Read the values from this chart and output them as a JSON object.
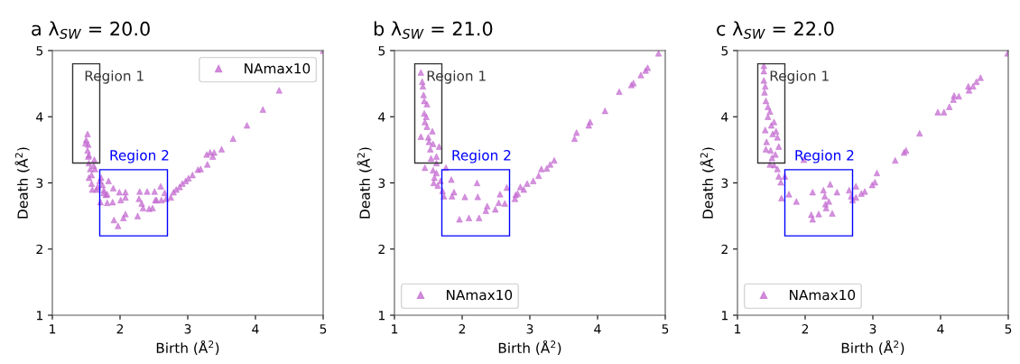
{
  "chart_data": [
    {
      "type": "scatter",
      "title": "a λ$_{SW}$ = 20.0",
      "xlabel": "Birth (Å$^{2}$)",
      "ylabel": "Death (Å$^{2}$)",
      "xlim": [
        1,
        5
      ],
      "ylim": [
        1,
        5
      ],
      "xticks": [
        1,
        2,
        3,
        4,
        5
      ],
      "yticks": [
        1,
        2,
        3,
        4,
        5
      ],
      "grid": false,
      "legend": "top right",
      "marker": "triangle",
      "annotations": [
        "Region 1",
        "Region 2"
      ],
      "series": [
        {
          "name": "NAmax10",
          "color": "#c46bd0",
          "x": [
            5.0,
            4.35,
            4.11,
            3.875,
            3.67,
            3.5,
            3.39,
            3.33,
            3.28,
            3.37,
            3.29,
            3.19,
            3.15,
            3.07,
            3.01,
            2.97,
            2.92,
            2.88,
            2.83,
            2.79,
            2.75,
            2.68,
            2.61,
            2.54,
            2.48,
            2.43,
            2.34,
            2.32,
            2.28,
            2.29,
            2.4,
            2.51,
            2.6,
            2.66,
            2.52,
            2.08,
            2.08,
            1.99,
            2.01,
            1.89,
            1.81,
            1.71,
            1.9,
            1.83,
            1.76,
            1.79,
            2.08,
            2.05,
            1.91,
            1.97,
            2.26,
            1.52,
            1.5,
            1.53,
            1.52,
            1.54,
            1.62,
            1.54,
            1.56,
            1.58,
            1.54,
            1.58,
            1.59,
            1.65,
            1.72,
            1.74,
            1.76,
            1.81,
            1.7,
            1.63,
            1.49,
            1.53,
            1.61,
            1.67
          ],
          "values": [
            5.0,
            4.4,
            4.11,
            3.87,
            3.67,
            3.51,
            3.46,
            3.46,
            3.43,
            3.4,
            3.28,
            3.21,
            3.2,
            3.12,
            3.07,
            3.03,
            2.99,
            2.94,
            2.9,
            2.86,
            2.78,
            2.76,
            2.74,
            2.74,
            2.62,
            2.61,
            2.62,
            2.69,
            2.76,
            2.87,
            2.87,
            2.87,
            2.95,
            2.85,
            2.74,
            2.86,
            2.78,
            2.86,
            2.74,
            2.71,
            2.7,
            2.71,
            2.92,
            3.03,
            2.89,
            2.82,
            2.53,
            2.47,
            2.44,
            2.35,
            2.5,
            3.74,
            3.65,
            3.58,
            3.49,
            3.42,
            3.35,
            3.3,
            3.21,
            3.12,
            3.08,
            2.99,
            2.9,
            2.9,
            3.08,
            2.97,
            2.85,
            2.83,
            3.03,
            3.21,
            3.6,
            3.4,
            3.26,
            2.94
          ]
        }
      ]
    },
    {
      "type": "scatter",
      "title": "b λ$_{SW}$ = 21.0",
      "xlabel": "Birth (Å$^{2}$)",
      "ylabel": "Death (Å$^{2}$)",
      "xlim": [
        1,
        5
      ],
      "ylim": [
        1,
        5
      ],
      "xticks": [
        1,
        2,
        3,
        4,
        5
      ],
      "yticks": [
        1,
        2,
        3,
        4,
        5
      ],
      "grid": false,
      "legend": "bottom left",
      "marker": "triangle",
      "annotations": [
        "Region 1",
        "Region 2"
      ],
      "series": [
        {
          "name": "NAmax10",
          "color": "#c46bd0",
          "x": [
            4.9,
            4.74,
            4.71,
            4.64,
            4.53,
            4.5,
            4.32,
            4.11,
            3.89,
            3.87,
            3.69,
            3.66,
            3.36,
            3.3,
            3.25,
            3.17,
            3.13,
            3.05,
            2.96,
            2.91,
            2.86,
            2.82,
            2.79,
            2.78,
            2.66,
            2.63,
            2.56,
            2.54,
            2.49,
            2.37,
            2.35,
            2.25,
            2.1,
            1.96,
            2.22,
            2.23,
            2.04,
            1.88,
            1.85,
            1.84,
            1.76,
            1.73,
            1.71,
            1.68,
            1.64,
            1.58,
            1.39,
            1.41,
            1.42,
            1.43,
            1.44,
            1.48,
            1.44,
            1.47,
            1.45,
            1.48,
            1.56,
            1.39,
            1.5,
            1.51,
            1.57,
            1.53,
            1.66,
            1.54,
            1.62,
            1.62,
            1.45,
            1.57,
            1.62,
            1.59
          ],
          "values": [
            4.96,
            4.74,
            4.7,
            4.63,
            4.51,
            4.48,
            4.38,
            4.09,
            3.92,
            3.87,
            3.76,
            3.67,
            3.34,
            3.28,
            3.22,
            3.21,
            3.11,
            3.03,
            2.99,
            2.9,
            2.94,
            2.84,
            2.82,
            2.76,
            2.93,
            2.69,
            2.83,
            2.7,
            2.6,
            2.65,
            2.58,
            2.47,
            2.47,
            2.45,
            3.0,
            2.79,
            2.79,
            2.86,
            2.8,
            3.05,
            3.23,
            2.8,
            2.88,
            3.03,
            2.96,
            3.0,
            4.67,
            4.53,
            4.46,
            4.33,
            4.24,
            4.19,
            4.05,
            4.0,
            3.92,
            3.85,
            3.78,
            3.7,
            3.69,
            3.62,
            3.59,
            3.51,
            3.55,
            3.37,
            3.4,
            3.3,
            3.23,
            3.19,
            3.15,
            3.08
          ]
        }
      ]
    },
    {
      "type": "scatter",
      "title": "c λ$_{SW}$ = 22.0",
      "xlabel": "Birth (Å$^{2}$)",
      "ylabel": "Death (Å$^{2}$)",
      "xlim": [
        1,
        5
      ],
      "ylim": [
        1,
        5
      ],
      "xticks": [
        1,
        2,
        3,
        4,
        5
      ],
      "yticks": [
        1,
        2,
        3,
        4,
        5
      ],
      "grid": false,
      "legend": "bottom left",
      "marker": "triangle",
      "annotations": [
        "Region 1",
        "Region 2"
      ],
      "series": [
        {
          "name": "NAmax10",
          "color": "#c46bd0",
          "x": [
            4.99,
            4.59,
            4.53,
            4.48,
            4.42,
            4.41,
            4.27,
            4.2,
            4.19,
            4.13,
            4.05,
            3.96,
            3.69,
            3.49,
            3.46,
            3.33,
            3.06,
            3.03,
            2.99,
            2.88,
            2.83,
            2.75,
            2.75,
            2.7,
            2.68,
            2.65,
            2.47,
            2.4,
            2.37,
            2.35,
            2.3,
            2.31,
            2.29,
            2.27,
            2.2,
            2.11,
            2.09,
            2.11,
            1.87,
            1.76,
            1.65,
            1.64,
            1.7,
            1.61,
            1.59,
            1.54,
            1.48,
            1.98,
            1.39,
            1.39,
            1.39,
            1.41,
            1.4,
            1.42,
            1.45,
            1.48,
            1.45,
            1.5,
            1.54,
            1.57,
            1.41,
            1.52,
            1.59,
            1.43,
            1.42,
            1.49,
            1.61,
            1.56,
            1.51
          ],
          "values": [
            4.96,
            4.59,
            4.53,
            4.46,
            4.4,
            4.46,
            4.31,
            4.32,
            4.26,
            4.15,
            4.07,
            4.07,
            3.75,
            3.49,
            3.46,
            3.34,
            3.15,
            3.01,
            2.97,
            2.87,
            2.84,
            2.95,
            2.78,
            2.74,
            2.8,
            2.89,
            2.86,
            2.54,
            2.98,
            2.72,
            2.68,
            2.62,
            2.8,
            2.89,
            2.53,
            2.86,
            2.52,
            2.45,
            2.72,
            2.83,
            2.77,
            3.01,
            3.1,
            3.1,
            3.21,
            3.27,
            3.28,
            3.35,
            4.77,
            4.69,
            4.55,
            4.46,
            4.37,
            4.24,
            4.15,
            4.08,
            4.0,
            3.87,
            3.92,
            3.78,
            3.8,
            3.74,
            3.69,
            3.62,
            3.51,
            3.49,
            3.55,
            3.43,
            3.38
          ]
        }
      ]
    }
  ]
}
